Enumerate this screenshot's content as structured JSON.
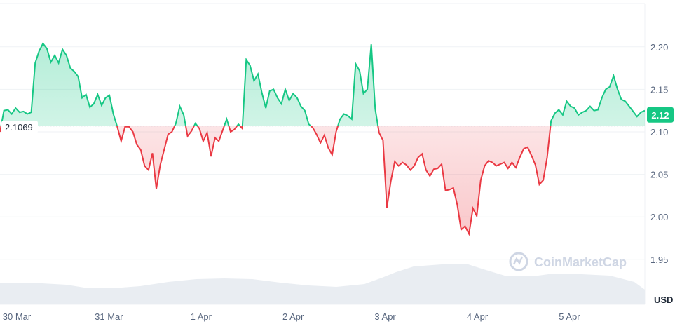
{
  "chart_data": {
    "type": "area",
    "title": "",
    "xlabel": "",
    "ylabel": "",
    "y_unit": "USD",
    "ylim": [
      1.92,
      2.24
    ],
    "y_ticks": [
      "2.20",
      "2.15",
      "2.10",
      "2.05",
      "2.00",
      "1.95"
    ],
    "x_ticks": [
      "30 Mar",
      "31 Mar",
      "1 Apr",
      "2 Apr",
      "3 Apr",
      "4 Apr",
      "5 Apr"
    ],
    "reference_price": 2.1069,
    "reference_label": "2.1069",
    "last_price": 2.12,
    "last_price_label": "2.12",
    "grid": true,
    "colors": {
      "above": "#16c784",
      "below": "#ea3943",
      "grid": "#eff2f5"
    },
    "watermark": "CoinMarketCap",
    "series": [
      {
        "values": [
          2.1,
          2.125,
          2.126,
          2.121,
          2.128,
          2.123,
          2.124,
          2.121,
          2.123,
          2.181,
          2.195,
          2.204,
          2.198,
          2.182,
          2.19,
          2.181,
          2.197,
          2.19,
          2.175,
          2.171,
          2.165,
          2.14,
          2.144,
          2.129,
          2.133,
          2.144,
          2.131,
          2.14,
          2.143,
          2.121,
          2.106,
          2.089,
          2.106,
          2.106,
          2.1,
          2.085,
          2.079,
          2.06,
          2.055,
          2.075,
          2.033,
          2.061,
          2.079,
          2.097,
          2.1,
          2.11,
          2.13,
          2.12,
          2.095,
          2.101,
          2.11,
          2.104,
          2.089,
          2.099,
          2.071,
          2.093,
          2.089,
          2.102,
          2.115,
          2.1,
          2.103,
          2.109,
          2.104,
          2.185,
          2.178,
          2.16,
          2.168,
          2.146,
          2.128,
          2.148,
          2.15,
          2.14,
          2.133,
          2.15,
          2.137,
          2.145,
          2.14,
          2.13,
          2.125,
          2.109,
          2.105,
          2.097,
          2.087,
          2.096,
          2.081,
          2.073,
          2.1,
          2.115,
          2.121,
          2.119,
          2.115,
          2.18,
          2.172,
          2.145,
          2.15,
          2.203,
          2.127,
          2.099,
          2.09,
          2.011,
          2.042,
          2.065,
          2.06,
          2.064,
          2.061,
          2.055,
          2.06,
          2.07,
          2.074,
          2.055,
          2.048,
          2.056,
          2.057,
          2.062,
          2.031,
          2.032,
          2.034,
          2.014,
          1.985,
          1.989,
          1.98,
          2.01,
          2.001,
          2.043,
          2.06,
          2.066,
          2.064,
          2.06,
          2.062,
          2.064,
          2.057,
          2.064,
          2.058,
          2.07,
          2.08,
          2.082,
          2.072,
          2.061,
          2.038,
          2.043,
          2.07,
          2.113,
          2.122,
          2.126,
          2.12,
          2.136,
          2.13,
          2.128,
          2.12,
          2.123,
          2.125,
          2.13,
          2.125,
          2.126,
          2.14,
          2.15,
          2.153,
          2.166,
          2.15,
          2.138,
          2.136,
          2.13,
          2.124,
          2.118,
          2.123,
          2.125
        ]
      }
    ]
  }
}
